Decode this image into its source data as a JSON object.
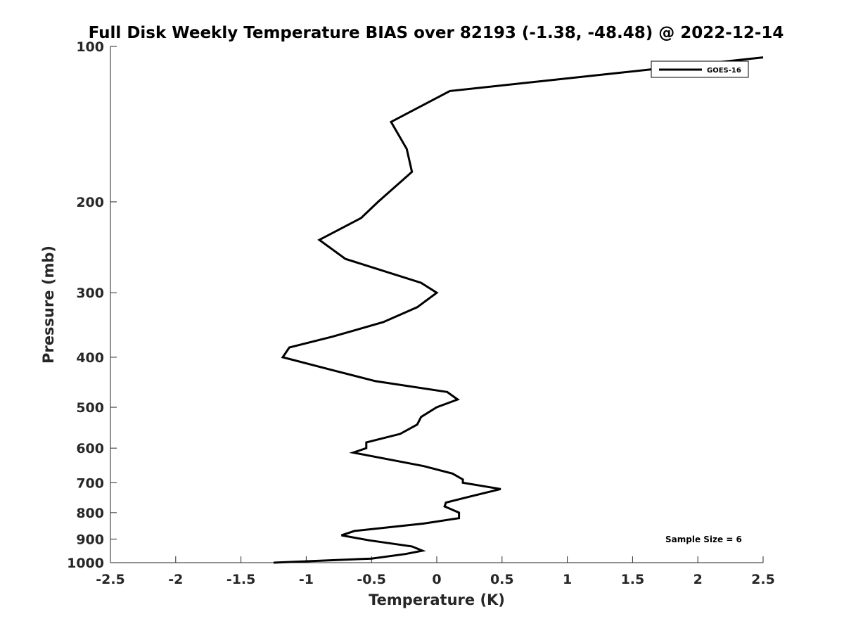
{
  "chart_data": {
    "type": "line",
    "title": "Full Disk Weekly Temperature BIAS over 82193 (-1.38, -48.48) @ 2022-12-14",
    "xlabel": "Temperature (K)",
    "ylabel": "Pressure (mb)",
    "xlim": [
      -2.5,
      2.5
    ],
    "ylim": [
      100,
      1000
    ],
    "yscale": "log",
    "yreversed": true,
    "xticks": [
      -2.5,
      -2,
      -1.5,
      -1,
      -0.5,
      0,
      0.5,
      1,
      1.5,
      2,
      2.5
    ],
    "xtick_labels": [
      "-2.5",
      "-2",
      "-1.5",
      "-1",
      "-0.5",
      "0",
      "0.5",
      "1",
      "1.5",
      "2",
      "2.5"
    ],
    "yticks": [
      100,
      200,
      300,
      400,
      500,
      600,
      700,
      800,
      900,
      1000
    ],
    "ytick_labels": [
      "100",
      "200",
      "300",
      "400",
      "500",
      "600",
      "700",
      "800",
      "900",
      "1000"
    ],
    "grid": false,
    "legend": {
      "position": "top-right",
      "entries": [
        "GOES-16"
      ]
    },
    "annotation": "Sample Size = 6",
    "series": [
      {
        "name": "GOES-16",
        "color": "#000000",
        "points": [
          [
            2.5,
            105
          ],
          [
            0.1,
            122
          ],
          [
            -0.35,
            140
          ],
          [
            -0.23,
            158
          ],
          [
            -0.19,
            175
          ],
          [
            -0.45,
            200
          ],
          [
            -0.58,
            215
          ],
          [
            -0.9,
            237
          ],
          [
            -0.7,
            258
          ],
          [
            -0.12,
            287
          ],
          [
            0.0,
            300
          ],
          [
            -0.15,
            320
          ],
          [
            -0.41,
            342
          ],
          [
            -0.8,
            365
          ],
          [
            -1.13,
            383
          ],
          [
            -1.18,
            400
          ],
          [
            -0.78,
            425
          ],
          [
            -0.47,
            445
          ],
          [
            0.08,
            467
          ],
          [
            0.16,
            483
          ],
          [
            0.0,
            500
          ],
          [
            -0.12,
            522
          ],
          [
            -0.15,
            540
          ],
          [
            -0.28,
            563
          ],
          [
            -0.54,
            585
          ],
          [
            -0.54,
            600
          ],
          [
            -0.64,
            612
          ],
          [
            -0.1,
            650
          ],
          [
            0.12,
            672
          ],
          [
            0.2,
            690
          ],
          [
            0.2,
            700
          ],
          [
            0.49,
            720
          ],
          [
            0.25,
            745
          ],
          [
            0.07,
            765
          ],
          [
            0.06,
            778
          ],
          [
            0.17,
            800
          ],
          [
            0.17,
            820
          ],
          [
            -0.1,
            840
          ],
          [
            -0.63,
            868
          ],
          [
            -0.73,
            885
          ],
          [
            -0.52,
            905
          ],
          [
            -0.19,
            930
          ],
          [
            -0.11,
            948
          ],
          [
            -0.24,
            962
          ],
          [
            -0.5,
            982
          ],
          [
            -1.25,
            1000
          ]
        ]
      }
    ]
  }
}
